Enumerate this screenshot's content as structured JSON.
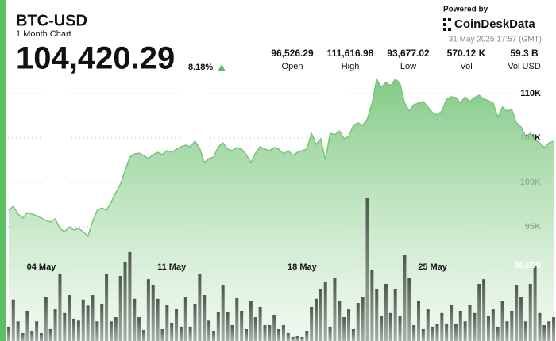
{
  "header": {
    "title": "BTC-USD",
    "subtitle": "1 Month Chart",
    "price": "104,420.29",
    "change": "8.18%",
    "powered_by": "Powered by",
    "brand": "CoinDeskData",
    "timestamp": "31 May 2025 17:57 (GMT)",
    "stats": [
      {
        "value": "96,526.29",
        "label": "Open"
      },
      {
        "value": "111,616.98",
        "label": "High"
      },
      {
        "value": "93,677.02",
        "label": "Low"
      },
      {
        "value": "570.12 K",
        "label": "Vol"
      },
      {
        "value": "59.3 B",
        "label": "Vol USD"
      }
    ]
  },
  "chart_data": [
    {
      "type": "area",
      "color": "#79c37c",
      "grid": true,
      "categories": [
        null,
        null,
        null,
        null,
        null,
        null,
        null,
        "04 May",
        null,
        null,
        null,
        null,
        null,
        null,
        null,
        null,
        null,
        null,
        null,
        null,
        null,
        null,
        null,
        null,
        null,
        null,
        null,
        null,
        null,
        null,
        null,
        null,
        null,
        null,
        null,
        "11 May",
        null,
        null,
        null,
        null,
        null,
        null,
        null,
        null,
        null,
        null,
        null,
        null,
        null,
        null,
        null,
        null,
        null,
        null,
        null,
        null,
        null,
        null,
        null,
        null,
        null,
        null,
        null,
        "18 May",
        null,
        null,
        null,
        null,
        null,
        null,
        null,
        null,
        null,
        null,
        null,
        null,
        null,
        null,
        null,
        null,
        null,
        null,
        null,
        null,
        null,
        null,
        null,
        null,
        null,
        null,
        null,
        "25 May",
        null,
        null,
        null,
        null,
        null,
        null,
        null,
        null,
        null,
        null,
        null,
        null,
        null,
        null,
        null,
        null,
        null,
        null,
        null,
        null,
        null,
        null,
        null,
        null,
        null,
        null
      ],
      "values": [
        96880,
        97320,
        96430,
        95980,
        96610,
        96430,
        96250,
        95980,
        95710,
        95540,
        95890,
        94820,
        94460,
        95000,
        94640,
        94820,
        94460,
        93930,
        95540,
        96880,
        97140,
        96880,
        97770,
        98840,
        99820,
        101340,
        102860,
        103210,
        103300,
        103040,
        102680,
        103130,
        103390,
        103130,
        103570,
        103390,
        103750,
        104020,
        104200,
        104020,
        104640,
        103840,
        102230,
        102680,
        102860,
        104020,
        104460,
        103750,
        103570,
        103930,
        103750,
        103130,
        102230,
        103300,
        104020,
        103750,
        103570,
        103930,
        103750,
        103210,
        103570,
        103040,
        103390,
        103570,
        103750,
        105540,
        104290,
        104910,
        102500,
        105540,
        105360,
        105800,
        104910,
        105180,
        106430,
        106700,
        106430,
        107140,
        108930,
        111610,
        110710,
        111250,
        110890,
        111610,
        111160,
        108930,
        108040,
        108750,
        108930,
        109110,
        108480,
        107860,
        107590,
        108040,
        109380,
        109640,
        109550,
        108930,
        109640,
        109110,
        109550,
        109820,
        109380,
        109200,
        108930,
        107320,
        108480,
        108040,
        108210,
        106700,
        106250,
        105180,
        105540,
        104730,
        104460,
        103930,
        104460,
        104640
      ],
      "ylim": [
        82150,
        112500
      ],
      "yticks": [
        {
          "value": 95000,
          "label": "95K"
        },
        {
          "value": 100000,
          "label": "100K"
        },
        {
          "value": 105000,
          "label": "105K"
        },
        {
          "value": 110000,
          "label": "110K"
        }
      ]
    },
    {
      "type": "bar",
      "color": "#6f7a6f",
      "values": [
        1900,
        5500,
        2600,
        1050,
        4000,
        1260,
        2600,
        1050,
        5800,
        1580,
        4200,
        8950,
        3700,
        6100,
        2950,
        2700,
        5500,
        4700,
        6100,
        2600,
        4950,
        8950,
        2600,
        3150,
        8630,
        10500,
        11800,
        5600,
        3150,
        1470,
        8200,
        7370,
        5600,
        1580,
        4740,
        2420,
        4200,
        1900,
        5800,
        1900,
        4950,
        8950,
        6100,
        2700,
        1370,
        3900,
        7370,
        3790,
        2100,
        5680,
        4000,
        1580,
        5260,
        3150,
        4530,
        2100,
        2100,
        3470,
        1580,
        2100,
        1050,
        530,
        630,
        530,
        1260,
        4530,
        5600,
        6840,
        7890,
        1900,
        8420,
        5260,
        3150,
        4200,
        1580,
        5050,
        5800,
        18950,
        9470,
        6840,
        3370,
        7580,
        3700,
        6840,
        3370,
        11370,
        8420,
        2100,
        5260,
        1580,
        4200,
        1900,
        2320,
        3700,
        2320,
        4840,
        2320,
        4000,
        2600,
        4840,
        3700,
        7580,
        8200,
        3370,
        4200,
        1900,
        5260,
        2600,
        4000,
        7370,
        5800,
        2600,
        7580,
        10000,
        3700,
        2100,
        2600,
        3150
      ],
      "ylim": [
        0,
        20000
      ],
      "yticks": [
        {
          "value": 10000,
          "label": "10,000"
        }
      ]
    }
  ]
}
